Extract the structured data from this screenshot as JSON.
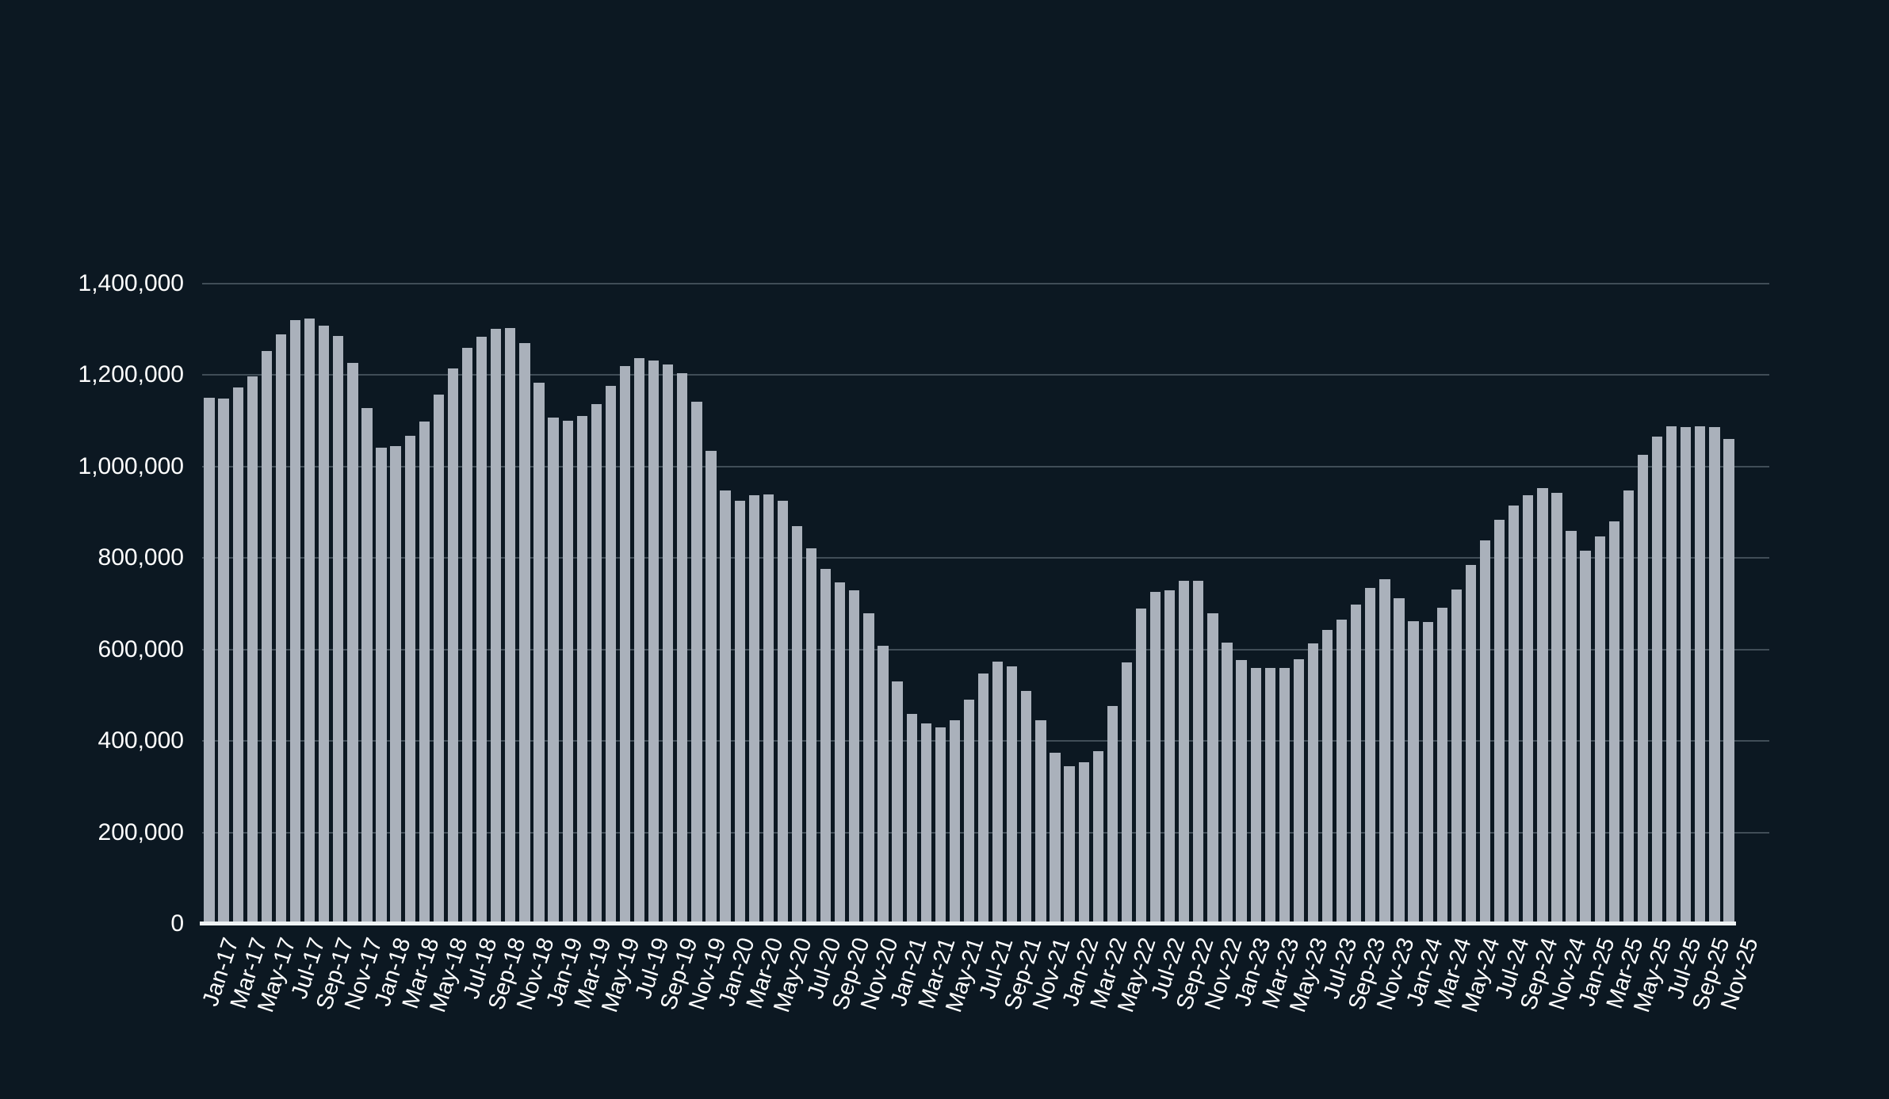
{
  "page": {
    "background_color": "#0c1822",
    "text_color": "#ffffff",
    "bar_color": "#aab1bb",
    "gridline_color": "rgba(173,190,199,0.32)",
    "baseline_color": "#eef2f4"
  },
  "chart_data": {
    "type": "bar",
    "title": "",
    "xlabel": "",
    "ylabel": "",
    "ylim": [
      0,
      1400000
    ],
    "y_tick_step": 200000,
    "y_ticks": [
      "0",
      "200,000",
      "400,000",
      "600,000",
      "800,000",
      "1,000,000",
      "1,200,000",
      "1,400,000"
    ],
    "grid": true,
    "legend_position": "none",
    "x_label_every": 2,
    "categories": [
      "Jan-17",
      "Feb-17",
      "Mar-17",
      "Apr-17",
      "May-17",
      "Jun-17",
      "Jul-17",
      "Aug-17",
      "Sep-17",
      "Oct-17",
      "Nov-17",
      "Dec-17",
      "Jan-18",
      "Feb-18",
      "Mar-18",
      "Apr-18",
      "May-18",
      "Jun-18",
      "Jul-18",
      "Aug-18",
      "Sep-18",
      "Oct-18",
      "Nov-18",
      "Dec-18",
      "Jan-19",
      "Feb-19",
      "Mar-19",
      "Apr-19",
      "May-19",
      "Jun-19",
      "Jul-19",
      "Aug-19",
      "Sep-19",
      "Oct-19",
      "Nov-19",
      "Dec-19",
      "Jan-20",
      "Feb-20",
      "Mar-20",
      "Apr-20",
      "May-20",
      "Jun-20",
      "Jul-20",
      "Aug-20",
      "Sep-20",
      "Oct-20",
      "Nov-20",
      "Dec-20",
      "Jan-21",
      "Feb-21",
      "Mar-21",
      "Apr-21",
      "May-21",
      "Jun-21",
      "Jul-21",
      "Aug-21",
      "Sep-21",
      "Oct-21",
      "Nov-21",
      "Dec-21",
      "Jan-22",
      "Feb-22",
      "Mar-22",
      "Apr-22",
      "May-22",
      "Jun-22",
      "Jul-22",
      "Aug-22",
      "Sep-22",
      "Oct-22",
      "Nov-22",
      "Dec-22",
      "Jan-23",
      "Feb-23",
      "Mar-23",
      "Apr-23",
      "May-23",
      "Jun-23",
      "Jul-23",
      "Aug-23",
      "Sep-23",
      "Oct-23",
      "Nov-23",
      "Dec-23",
      "Jan-24",
      "Feb-24",
      "Mar-24",
      "Apr-24",
      "May-24",
      "Jun-24",
      "Jul-24",
      "Aug-24",
      "Sep-24",
      "Oct-24",
      "Nov-24",
      "Dec-24",
      "Jan-25",
      "Feb-25",
      "Mar-25",
      "Apr-25",
      "May-25",
      "Jun-25",
      "Jul-25",
      "Aug-25",
      "Sep-25",
      "Oct-25",
      "Nov-25"
    ],
    "values": [
      1150000,
      1148000,
      1173000,
      1198000,
      1252000,
      1289000,
      1320000,
      1324000,
      1308000,
      1286000,
      1227000,
      1128000,
      1042000,
      1045000,
      1067000,
      1098000,
      1157000,
      1215000,
      1259000,
      1284000,
      1301000,
      1303000,
      1270000,
      1183000,
      1107000,
      1101000,
      1110000,
      1136000,
      1177000,
      1219000,
      1238000,
      1232000,
      1224000,
      1205000,
      1141000,
      1034000,
      948000,
      926000,
      937000,
      939000,
      926000,
      869000,
      821000,
      776000,
      746000,
      730000,
      679000,
      608000,
      530000,
      460000,
      438000,
      430000,
      445000,
      490000,
      548000,
      574000,
      564000,
      510000,
      445000,
      375000,
      344000,
      354000,
      378000,
      476000,
      571000,
      690000,
      726000,
      730000,
      750000,
      750000,
      679000,
      615000,
      577000,
      560000,
      560000,
      559000,
      578000,
      614000,
      643000,
      665000,
      698000,
      734000,
      754000,
      712000,
      662000,
      661000,
      691000,
      731000,
      785000,
      838000,
      883000,
      915000,
      938000,
      953000,
      942000,
      859000,
      816000,
      847000,
      880000,
      947000,
      1025000,
      1066000,
      1089000,
      1086000,
      1089000,
      1086000,
      1060000
    ]
  }
}
